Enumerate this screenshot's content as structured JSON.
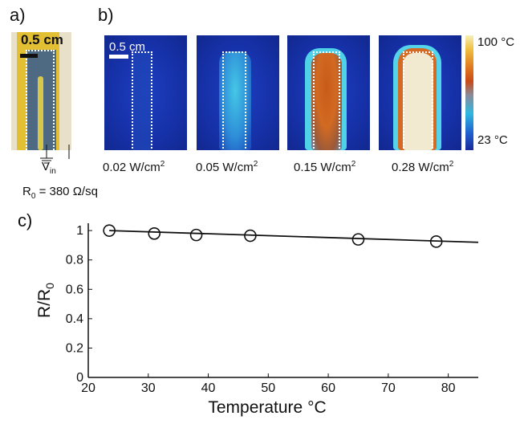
{
  "panel_a": {
    "label": "a)",
    "scale_text": "0.5 cm",
    "vin_label": "V",
    "vin_sub": "in",
    "r0_label": "R",
    "r0_sub": "0",
    "r0_value": " = 380 Ω/sq"
  },
  "panel_b": {
    "label": "b)",
    "scale_text": "0.5 cm",
    "colorbar_max": "100 °C",
    "colorbar_min": "23 °C",
    "power_unit": " W/cm",
    "power_exp": "2",
    "images": [
      {
        "power": "0.02"
      },
      {
        "power": "0.05"
      },
      {
        "power": "0.15"
      },
      {
        "power": "0.28"
      }
    ]
  },
  "panel_c": {
    "label": "c)"
  },
  "chart_data": {
    "type": "scatter",
    "xlabel": "Temperature °C",
    "ylabel": "R/R0",
    "xlim": [
      20,
      85
    ],
    "ylim": [
      0,
      1.05
    ],
    "xticks": [
      20,
      30,
      40,
      50,
      60,
      70,
      80
    ],
    "yticks": [
      0,
      0.2,
      0.4,
      0.6,
      0.8,
      1
    ],
    "ytick_labels": [
      "0",
      "0.2",
      "0.4",
      "0.6",
      "0.8",
      "1"
    ],
    "points": [
      {
        "x": 23.5,
        "y": 1.0
      },
      {
        "x": 31,
        "y": 0.98
      },
      {
        "x": 38,
        "y": 0.97
      },
      {
        "x": 47,
        "y": 0.965
      },
      {
        "x": 65,
        "y": 0.94
      },
      {
        "x": 78,
        "y": 0.925
      }
    ],
    "fit_line": [
      {
        "x": 23.5,
        "y": 1.0
      },
      {
        "x": 85,
        "y": 0.92
      }
    ],
    "grid": false,
    "legend": "none"
  }
}
